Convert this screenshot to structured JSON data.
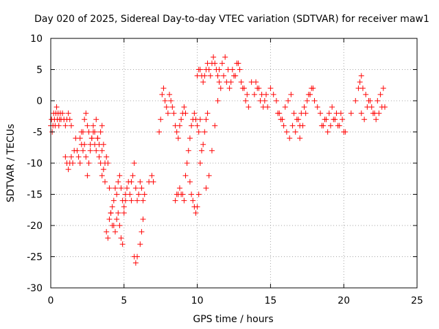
{
  "chart_data": {
    "type": "scatter",
    "title": "Day 020 of 2025, Sidereal Day-to-day VTEC variation (SDTVAR) for receiver maw1",
    "xlabel": "GPS time / hours",
    "ylabel": "SDTVAR / TECUs",
    "xlim": [
      0,
      25
    ],
    "ylim": [
      -30,
      10
    ],
    "x_ticks": [
      0,
      5,
      10,
      15,
      20,
      25
    ],
    "y_ticks": [
      -30,
      -25,
      -20,
      -15,
      -10,
      -5,
      0,
      5,
      10
    ],
    "grid": true,
    "marker": "plus",
    "color": "#ff0000",
    "series": [
      {
        "name": "SDTVAR",
        "x": [
          0.0,
          0.05,
          0.1,
          0.15,
          0.2,
          0.25,
          0.3,
          0.35,
          0.4,
          0.45,
          0.5,
          0.55,
          0.6,
          0.65,
          0.7,
          0.8,
          0.9,
          1.0,
          1.1,
          1.2,
          1.3,
          1.4,
          1.0,
          1.1,
          1.2,
          1.3,
          1.4,
          1.5,
          1.6,
          1.7,
          1.8,
          1.9,
          2.0,
          2.1,
          2.2,
          2.3,
          2.4,
          2.5,
          2.6,
          2.7,
          2.8,
          2.9,
          3.0,
          3.1,
          3.2,
          3.3,
          3.4,
          3.5,
          2.0,
          2.1,
          2.2,
          2.3,
          2.4,
          2.5,
          2.6,
          2.7,
          2.8,
          2.9,
          3.0,
          3.1,
          3.2,
          3.3,
          3.4,
          3.5,
          3.6,
          3.7,
          3.5,
          3.6,
          3.7,
          3.8,
          3.9,
          4.0,
          4.1,
          4.2,
          4.3,
          4.4,
          4.5,
          4.6,
          4.7,
          4.8,
          4.9,
          5.0,
          5.1,
          5.2,
          5.3,
          5.4,
          5.5,
          3.8,
          3.9,
          4.0,
          4.1,
          4.2,
          4.3,
          4.4,
          4.5,
          4.6,
          4.7,
          4.8,
          4.9,
          5.0,
          5.1,
          5.5,
          5.6,
          5.7,
          5.8,
          5.9,
          6.0,
          6.1,
          6.2,
          6.3,
          6.4,
          5.7,
          5.8,
          5.9,
          6.1,
          6.2,
          6.3,
          6.7,
          6.9,
          7.0,
          7.4,
          7.5,
          7.6,
          7.7,
          7.8,
          7.9,
          8.0,
          8.1,
          8.2,
          8.3,
          8.4,
          8.5,
          8.6,
          8.7,
          8.8,
          8.9,
          9.0,
          9.1,
          9.2,
          8.5,
          8.6,
          8.7,
          8.8,
          8.9,
          9.0,
          9.1,
          9.2,
          9.3,
          9.4,
          9.5,
          9.6,
          9.7,
          9.8,
          9.9,
          10.0,
          10.1,
          10.2,
          9.5,
          9.6,
          9.7,
          9.8,
          9.9,
          10.0,
          10.1,
          10.2,
          10.3,
          10.4,
          10.5,
          10.6,
          10.7,
          10.0,
          10.1,
          10.2,
          10.3,
          10.4,
          10.5,
          10.6,
          10.7,
          10.8,
          10.9,
          11.0,
          11.1,
          11.2,
          11.3,
          11.4,
          11.5,
          10.6,
          10.8,
          11.0,
          11.2,
          11.4,
          11.6,
          11.8,
          12.0,
          12.2,
          12.4,
          12.6,
          12.8,
          13.0,
          13.2,
          13.4,
          11.5,
          11.7,
          11.9,
          12.1,
          12.3,
          12.5,
          12.7,
          12.9,
          13.1,
          13.3,
          13.5,
          13.7,
          13.9,
          14.1,
          14.3,
          14.5,
          14.7,
          14.0,
          14.2,
          14.4,
          14.6,
          14.8,
          15.0,
          15.2,
          15.4,
          15.6,
          15.8,
          16.0,
          16.2,
          16.4,
          16.6,
          16.8,
          17.0,
          15.5,
          15.7,
          15.9,
          16.1,
          16.3,
          16.5,
          16.7,
          16.9,
          17.1,
          17.3,
          17.5,
          17.7,
          17.9,
          17.0,
          17.2,
          17.4,
          17.6,
          17.8,
          18.0,
          18.2,
          18.4,
          18.6,
          18.8,
          19.0,
          19.2,
          19.4,
          19.6,
          19.8,
          20.0,
          18.5,
          18.7,
          18.9,
          19.1,
          19.3,
          19.5,
          19.7,
          19.9,
          20.1,
          20.5,
          20.8,
          21.0,
          21.1,
          21.2,
          21.3,
          21.5,
          21.7,
          21.9,
          22.1,
          22.3,
          22.5,
          22.7,
          22.8,
          21.2,
          21.4,
          21.6,
          21.8,
          22.0,
          22.2,
          22.4,
          22.6
        ],
        "y": [
          -4,
          -3,
          -5,
          -4,
          -2,
          -3,
          -4,
          -2,
          -1,
          -3,
          -2,
          -4,
          -3,
          -2,
          -3,
          -2,
          -3,
          -4,
          -3,
          -2,
          -3,
          -4,
          -9,
          -10,
          -11,
          -10,
          -9,
          -10,
          -8,
          -6,
          -8,
          -9,
          -10,
          -7,
          -5,
          -3,
          -2,
          -4,
          -5,
          -7,
          -6,
          -4,
          -5,
          -3,
          -6,
          -7,
          -5,
          -4,
          -6,
          -5,
          -8,
          -7,
          -9,
          -12,
          -10,
          -8,
          -6,
          -5,
          -7,
          -8,
          -6,
          -9,
          -10,
          -8,
          -7,
          -10,
          -12,
          -11,
          -13,
          -9,
          -10,
          -14,
          -18,
          -20,
          -16,
          -14,
          -15,
          -13,
          -12,
          -14,
          -16,
          -17,
          -15,
          -14,
          -13,
          -15,
          -16,
          -21,
          -22,
          -19,
          -18,
          -17,
          -20,
          -21,
          -19,
          -18,
          -20,
          -22,
          -23,
          -18,
          -16,
          -13,
          -12,
          -10,
          -14,
          -16,
          -15,
          -13,
          -14,
          -16,
          -15,
          -25,
          -26,
          -25,
          -23,
          -21,
          -19,
          -13,
          -12,
          -13,
          -5,
          -3,
          1,
          2,
          0,
          -1,
          -2,
          1,
          0,
          -1,
          -2,
          -4,
          -5,
          -6,
          -4,
          -3,
          -2,
          -1,
          -2,
          -16,
          -15,
          -15,
          -14,
          -15,
          -15,
          -16,
          -12,
          -10,
          -8,
          -6,
          -4,
          -3,
          -2,
          -3,
          -4,
          -5,
          -3,
          -13,
          -15,
          -16,
          -17,
          -18,
          -17,
          -15,
          -10,
          -8,
          -7,
          -5,
          -3,
          -2,
          4,
          5,
          5,
          4,
          3,
          4,
          5,
          6,
          5,
          4,
          6,
          7,
          6,
          5,
          4,
          3,
          -14,
          -12,
          -8,
          -4,
          0,
          2,
          4,
          3,
          2,
          5,
          4,
          6,
          3,
          2,
          1,
          5,
          6,
          7,
          5,
          3,
          4,
          6,
          5,
          2,
          0,
          -1,
          3,
          1,
          2,
          0,
          -1,
          1,
          3,
          2,
          1,
          0,
          -1,
          2,
          1,
          0,
          -2,
          -3,
          -1,
          0,
          1,
          -2,
          -3,
          -4,
          -2,
          -3,
          -4,
          -5,
          -6,
          -4,
          -5,
          -3,
          -2,
          -1,
          0,
          1,
          2,
          -6,
          -4,
          -2,
          1,
          2,
          0,
          -1,
          -2,
          -4,
          -3,
          -2,
          -1,
          -3,
          -4,
          -2,
          -5,
          -4,
          -3,
          -5,
          -4,
          -3,
          -2,
          -4,
          -3,
          -5,
          -2,
          0,
          2,
          3,
          4,
          2,
          1,
          0,
          -1,
          -2,
          0,
          1,
          2,
          -1,
          -2,
          -3,
          -1,
          0,
          -2,
          -3,
          -2,
          -1
        ]
      }
    ]
  }
}
